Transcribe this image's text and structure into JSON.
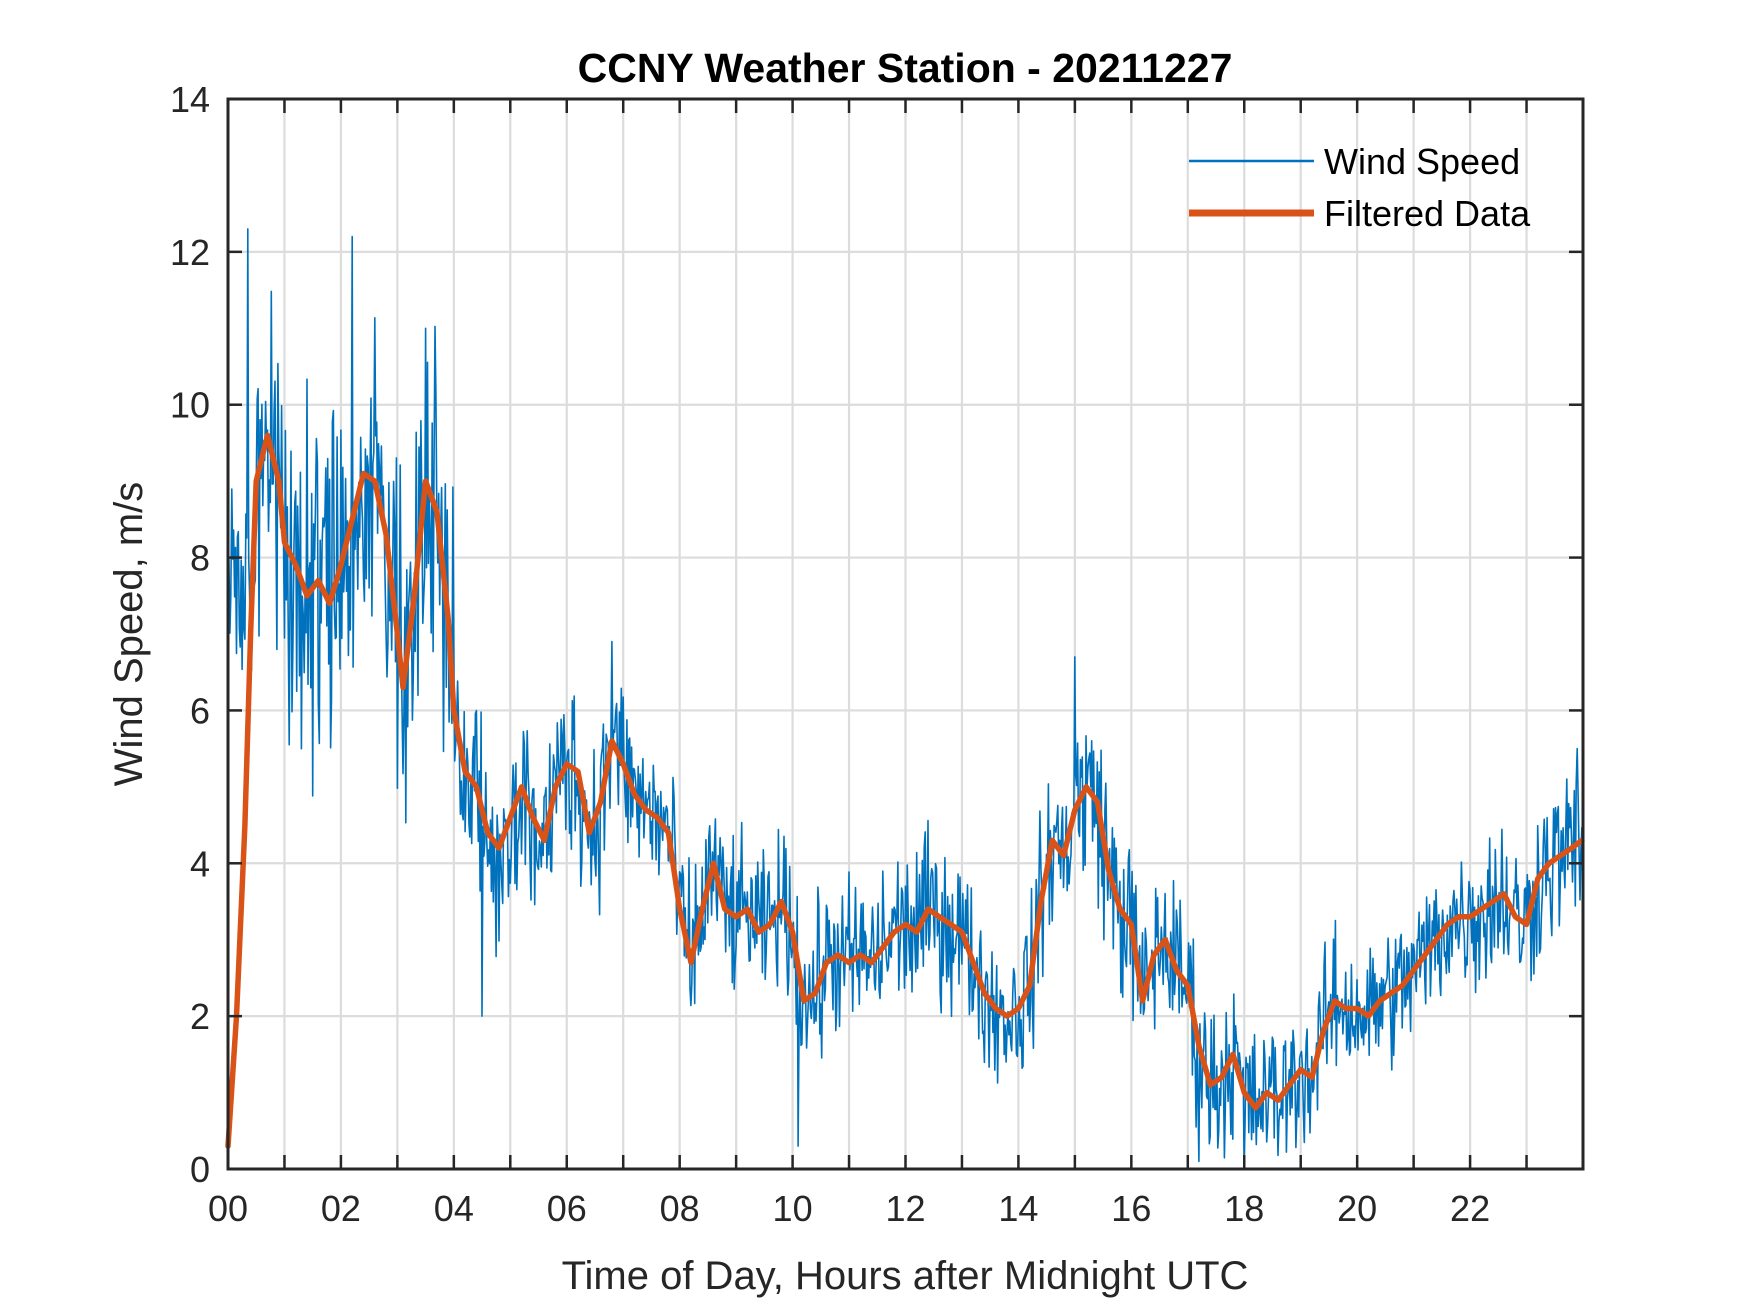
{
  "chart_data": {
    "type": "line",
    "title": "CCNY Weather Station - 20211227",
    "xlabel": "Time of Day, Hours after Midnight UTC",
    "ylabel": "Wind Speed, m/s",
    "xlim": [
      0,
      24
    ],
    "ylim": [
      0,
      14
    ],
    "x_ticks": [
      0,
      2,
      4,
      6,
      8,
      10,
      12,
      14,
      16,
      18,
      20,
      22
    ],
    "x_tick_labels": [
      "00",
      "02",
      "04",
      "06",
      "08",
      "10",
      "12",
      "14",
      "16",
      "18",
      "20",
      "22"
    ],
    "x_minor_gridlines_every_hours": 1,
    "y_ticks": [
      0,
      2,
      4,
      6,
      8,
      10,
      12,
      14
    ],
    "y_tick_labels": [
      "0",
      "2",
      "4",
      "6",
      "8",
      "10",
      "12",
      "14"
    ],
    "grid": true,
    "legend": {
      "placement": "top-right",
      "entries": [
        {
          "label": "Wind Speed",
          "color": "#0072BD"
        },
        {
          "label": "Filtered Data",
          "color": "#D95319"
        }
      ]
    },
    "series": [
      {
        "name": "Wind Speed",
        "color": "#0072BD",
        "note": "raw 1-minute-class samples; high-frequency noise around the filtered trend",
        "noise_amplitude_by_hour": [
          1.6,
          1.8,
          1.7,
          1.6,
          1.1,
          0.9,
          0.9,
          0.8,
          0.8,
          0.7,
          0.8,
          0.8,
          0.8,
          0.7,
          0.8,
          0.9,
          0.8,
          0.8,
          0.7,
          0.7,
          0.7,
          0.7,
          0.8,
          0.8
        ],
        "peaks": [
          {
            "x": 0.35,
            "y": 12.3
          },
          {
            "x": 2.2,
            "y": 12.2
          },
          {
            "x": 3.5,
            "y": 11.0
          },
          {
            "x": 6.8,
            "y": 6.9
          },
          {
            "x": 15.0,
            "y": 6.7
          },
          {
            "x": 23.9,
            "y": 5.5
          }
        ],
        "troughs": [
          {
            "x": 4.5,
            "y": 2.0
          },
          {
            "x": 10.1,
            "y": 0.3
          },
          {
            "x": 17.2,
            "y": 0.1
          },
          {
            "x": 18.0,
            "y": 0.0
          }
        ]
      },
      {
        "name": "Filtered Data",
        "color": "#D95319",
        "x": [
          0.0,
          0.15,
          0.3,
          0.4,
          0.5,
          0.7,
          0.9,
          1.0,
          1.2,
          1.4,
          1.6,
          1.8,
          2.0,
          2.2,
          2.4,
          2.6,
          2.8,
          3.0,
          3.1,
          3.3,
          3.5,
          3.7,
          3.9,
          4.0,
          4.2,
          4.4,
          4.6,
          4.8,
          5.0,
          5.2,
          5.4,
          5.6,
          5.8,
          6.0,
          6.2,
          6.4,
          6.6,
          6.8,
          7.0,
          7.2,
          7.4,
          7.6,
          7.8,
          8.0,
          8.2,
          8.4,
          8.6,
          8.8,
          9.0,
          9.2,
          9.4,
          9.6,
          9.8,
          10.0,
          10.2,
          10.4,
          10.6,
          10.8,
          11.0,
          11.2,
          11.4,
          11.6,
          11.8,
          12.0,
          12.2,
          12.4,
          12.6,
          12.8,
          13.0,
          13.2,
          13.4,
          13.6,
          13.8,
          14.0,
          14.2,
          14.4,
          14.6,
          14.8,
          15.0,
          15.2,
          15.4,
          15.6,
          15.8,
          16.0,
          16.2,
          16.4,
          16.6,
          16.8,
          17.0,
          17.2,
          17.4,
          17.6,
          17.8,
          18.0,
          18.2,
          18.4,
          18.6,
          18.8,
          19.0,
          19.2,
          19.4,
          19.6,
          19.8,
          20.0,
          20.2,
          20.4,
          20.6,
          20.8,
          21.0,
          21.2,
          21.4,
          21.6,
          21.8,
          22.0,
          22.2,
          22.4,
          22.6,
          22.8,
          23.0,
          23.2,
          23.4,
          23.6,
          23.8,
          23.98
        ],
        "values": [
          0.3,
          2.0,
          4.5,
          7.0,
          9.0,
          9.6,
          9.0,
          8.2,
          7.9,
          7.5,
          7.7,
          7.4,
          7.9,
          8.5,
          9.1,
          9.0,
          8.3,
          7.0,
          6.3,
          7.5,
          9.0,
          8.6,
          7.2,
          6.0,
          5.2,
          5.0,
          4.4,
          4.2,
          4.6,
          5.0,
          4.6,
          4.3,
          5.0,
          5.3,
          5.2,
          4.4,
          4.8,
          5.6,
          5.3,
          4.9,
          4.7,
          4.6,
          4.4,
          3.4,
          2.7,
          3.4,
          4.0,
          3.4,
          3.3,
          3.4,
          3.1,
          3.2,
          3.5,
          3.1,
          2.2,
          2.3,
          2.7,
          2.8,
          2.7,
          2.8,
          2.7,
          2.9,
          3.1,
          3.2,
          3.1,
          3.4,
          3.3,
          3.2,
          3.1,
          2.7,
          2.3,
          2.1,
          2.0,
          2.1,
          2.4,
          3.5,
          4.3,
          4.1,
          4.7,
          5.0,
          4.8,
          3.9,
          3.4,
          3.2,
          2.2,
          2.8,
          3.0,
          2.6,
          2.4,
          1.6,
          1.1,
          1.2,
          1.5,
          1.0,
          0.8,
          1.0,
          0.9,
          1.1,
          1.3,
          1.2,
          1.8,
          2.2,
          2.1,
          2.1,
          2.0,
          2.2,
          2.3,
          2.4,
          2.6,
          2.8,
          3.0,
          3.2,
          3.3,
          3.3,
          3.4,
          3.5,
          3.6,
          3.3,
          3.2,
          3.8,
          4.0,
          4.1,
          4.2,
          4.3
        ]
      }
    ]
  }
}
